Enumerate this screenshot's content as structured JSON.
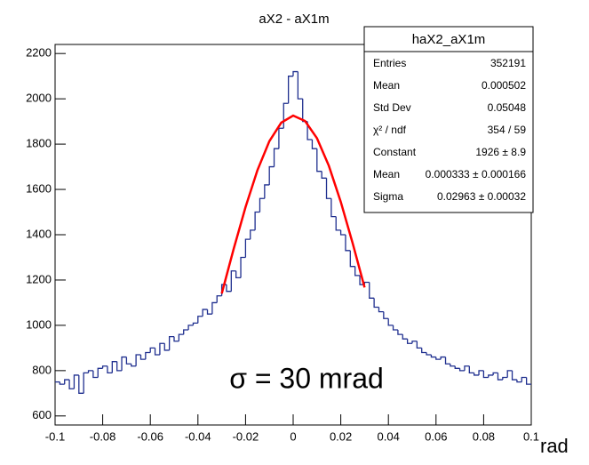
{
  "chart_data": {
    "type": "histogram",
    "title": "aX2 - aX1m",
    "x_label": "rad",
    "annotation": "σ = 30 mrad",
    "color": "#1f2f8f",
    "bins": [
      -0.1,
      -0.098,
      -0.096,
      -0.094,
      -0.092,
      -0.09,
      -0.088,
      -0.086,
      -0.084,
      -0.082,
      -0.08,
      -0.078,
      -0.076,
      -0.074,
      -0.072,
      -0.07,
      -0.068,
      -0.066,
      -0.064,
      -0.062,
      -0.06,
      -0.058,
      -0.056,
      -0.054,
      -0.052,
      -0.05,
      -0.048,
      -0.046,
      -0.044,
      -0.042,
      -0.04,
      -0.038,
      -0.036,
      -0.034,
      -0.032,
      -0.03,
      -0.028,
      -0.026,
      -0.024,
      -0.022,
      -0.02,
      -0.018,
      -0.016,
      -0.014,
      -0.012,
      -0.01,
      -0.008,
      -0.006,
      -0.004,
      -0.002,
      0,
      0.002,
      0.004,
      0.006,
      0.008,
      0.01,
      0.012,
      0.014,
      0.016,
      0.018,
      0.02,
      0.022,
      0.024,
      0.026,
      0.028,
      0.03,
      0.032,
      0.034,
      0.036,
      0.038,
      0.04,
      0.042,
      0.044,
      0.046,
      0.048,
      0.05,
      0.052,
      0.054,
      0.056,
      0.058,
      0.06,
      0.062,
      0.064,
      0.066,
      0.068,
      0.07,
      0.072,
      0.074,
      0.076,
      0.078,
      0.08,
      0.082,
      0.084,
      0.086,
      0.088,
      0.09,
      0.092,
      0.094,
      0.096,
      0.098,
      0.1
    ],
    "values": [
      750,
      740,
      760,
      720,
      780,
      700,
      790,
      800,
      770,
      810,
      820,
      790,
      840,
      800,
      860,
      830,
      820,
      870,
      850,
      880,
      900,
      870,
      920,
      890,
      950,
      930,
      960,
      980,
      1000,
      1010,
      1040,
      1070,
      1050,
      1100,
      1130,
      1180,
      1150,
      1240,
      1210,
      1300,
      1380,
      1420,
      1500,
      1560,
      1620,
      1700,
      1780,
      1870,
      1980,
      2100,
      2120,
      2000,
      1900,
      1820,
      1780,
      1680,
      1650,
      1560,
      1480,
      1420,
      1400,
      1330,
      1260,
      1220,
      1180,
      1190,
      1120,
      1080,
      1060,
      1030,
      1000,
      980,
      960,
      940,
      920,
      930,
      900,
      880,
      870,
      860,
      850,
      860,
      830,
      820,
      810,
      800,
      820,
      790,
      780,
      800,
      770,
      780,
      790,
      760,
      770,
      800,
      760,
      750,
      770,
      740
    ],
    "fit": {
      "color": "#ff0000",
      "x": [
        -0.03,
        -0.025,
        -0.02,
        -0.015,
        -0.01,
        -0.005,
        0,
        0.005,
        0.01,
        0.015,
        0.02,
        0.025,
        0.03
      ],
      "values": [
        1140,
        1337,
        1522,
        1685,
        1813,
        1895,
        1926,
        1902,
        1826,
        1704,
        1545,
        1362,
        1167
      ]
    },
    "xlim": [
      -0.1,
      0.1
    ],
    "xticks": [
      -0.1,
      -0.08,
      -0.06,
      -0.04,
      -0.02,
      0,
      0.02,
      0.04,
      0.06,
      0.08,
      0.1
    ],
    "ylim": [
      560,
      2240
    ],
    "yticks": [
      600,
      800,
      1000,
      1200,
      1400,
      1600,
      1800,
      2000,
      2200
    ],
    "stats": {
      "title": "haX2_aX1m",
      "rows": [
        [
          "Entries",
          "352191"
        ],
        [
          "Mean",
          "0.000502"
        ],
        [
          "Std Dev",
          "0.05048"
        ],
        [
          "χ² / ndf",
          "354 / 59"
        ],
        [
          "Constant",
          "1926 ± 8.9"
        ],
        [
          "Mean",
          "0.000333 ± 0.000166"
        ],
        [
          "Sigma",
          "0.02963 ± 0.00032"
        ]
      ]
    }
  }
}
